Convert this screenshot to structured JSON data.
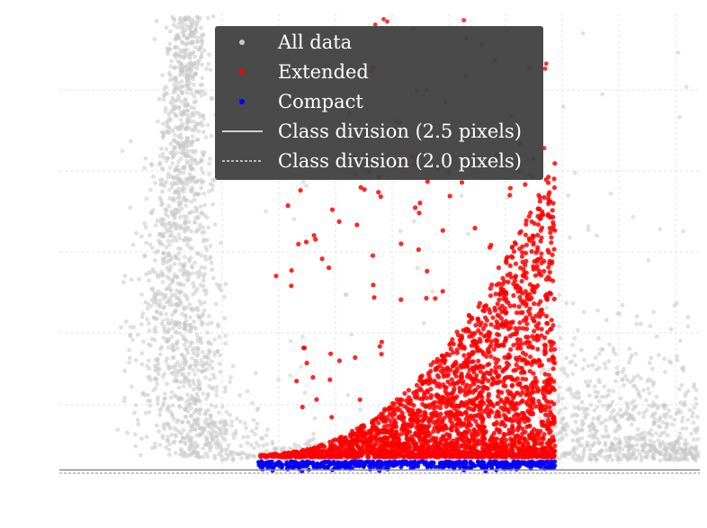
{
  "chart_data": {
    "type": "scatter",
    "title": "",
    "xlabel": "",
    "ylabel": "",
    "grid": true,
    "legend_placement": "top-center",
    "xlim": [
      0,
      10
    ],
    "ylim": [
      0,
      10
    ],
    "series": [
      {
        "name": "All data",
        "color": "#c8c8c8",
        "marker": "point"
      },
      {
        "name": "Extended",
        "color": "#ff0000",
        "marker": "point"
      },
      {
        "name": "Compact",
        "color": "#0000ff",
        "marker": "point"
      }
    ],
    "lines": [
      {
        "name": "Class division (2.5 pixels)",
        "style": "solid",
        "color": "#ffffff",
        "y": 0.05
      },
      {
        "name": "Class division (2.0 pixels)",
        "style": "dashed",
        "color": "#ffffff",
        "y": 0.02
      }
    ],
    "colors": {
      "legend_bg": "#404040",
      "grid": "#e6e6e6"
    }
  }
}
